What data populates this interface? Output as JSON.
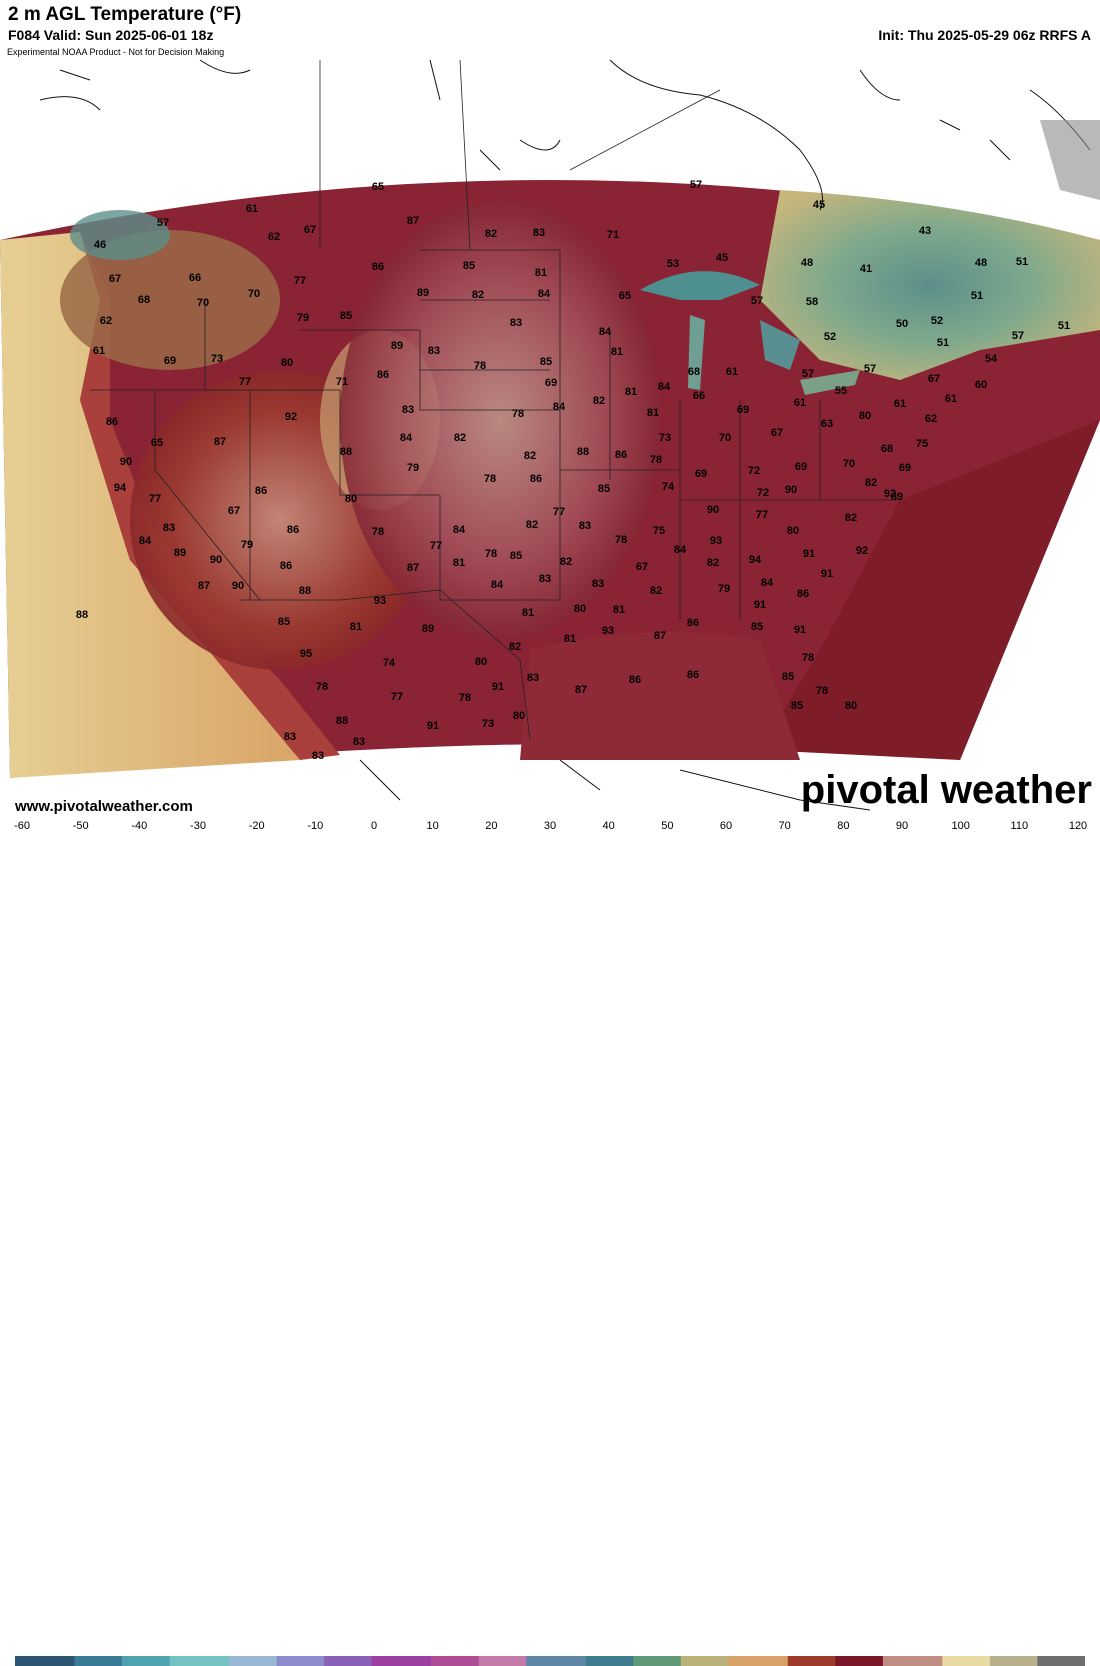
{
  "header": {
    "title": "2 m AGL Temperature (°F)",
    "valid": "F084 Valid: Sun 2025-06-01 18z",
    "init": "Init: Thu 2025-05-29 06z RRFS A",
    "disclaimer": "Experimental NOAA Product - Not for Decision Making"
  },
  "footer": {
    "url": "www.pivotalweather.com",
    "brand": "pivotal weather"
  },
  "colorbar": {
    "ticks": [
      "-60",
      "-50",
      "-40",
      "-30",
      "-20",
      "-10",
      "0",
      "10",
      "20",
      "30",
      "40",
      "50",
      "60",
      "70",
      "80",
      "90",
      "100",
      "110",
      "120"
    ],
    "range_f": [
      -60,
      120
    ],
    "colors": [
      "#2b5573",
      "#3a7b97",
      "#4fa3b1",
      "#74c3c3",
      "#9bb7d6",
      "#8c8ccc",
      "#8a5fb8",
      "#9b3fa0",
      "#b04d97",
      "#c47aa8",
      "#5e86a6",
      "#3f7c8d",
      "#5f9978",
      "#b9b27a",
      "#d7a168",
      "#9e3b2a",
      "#7a1628",
      "#c08d83",
      "#e8d9a5",
      "#b8b08a",
      "#6e6e6e"
    ]
  },
  "map": {
    "temperature_labels": [
      {
        "v": "65"
      },
      {
        "v": "57"
      },
      {
        "v": "61"
      },
      {
        "v": "87"
      },
      {
        "v": "57"
      },
      {
        "v": "45"
      },
      {
        "v": "43"
      },
      {
        "v": "62"
      },
      {
        "v": "67"
      },
      {
        "v": "82"
      },
      {
        "v": "83"
      },
      {
        "v": "71"
      },
      {
        "v": "46"
      },
      {
        "v": "86"
      },
      {
        "v": "85"
      },
      {
        "v": "66"
      },
      {
        "v": "77"
      },
      {
        "v": "81"
      },
      {
        "v": "53"
      },
      {
        "v": "45"
      },
      {
        "v": "48"
      },
      {
        "v": "41"
      },
      {
        "v": "48"
      },
      {
        "v": "51"
      },
      {
        "v": "67"
      },
      {
        "v": "68"
      },
      {
        "v": "70"
      },
      {
        "v": "70"
      },
      {
        "v": "89"
      },
      {
        "v": "82"
      },
      {
        "v": "84"
      },
      {
        "v": "65"
      },
      {
        "v": "57"
      },
      {
        "v": "58"
      },
      {
        "v": "51"
      },
      {
        "v": "62"
      },
      {
        "v": "79"
      },
      {
        "v": "85"
      },
      {
        "v": "83"
      },
      {
        "v": "50"
      },
      {
        "v": "52"
      },
      {
        "v": "57"
      },
      {
        "v": "51"
      },
      {
        "v": "61"
      },
      {
        "v": "73"
      },
      {
        "v": "80"
      },
      {
        "v": "89"
      },
      {
        "v": "83"
      },
      {
        "v": "85"
      },
      {
        "v": "81"
      },
      {
        "v": "84"
      },
      {
        "v": "52"
      },
      {
        "v": "51"
      },
      {
        "v": "54"
      },
      {
        "v": "69"
      },
      {
        "v": "78"
      },
      {
        "v": "77"
      },
      {
        "v": "71"
      },
      {
        "v": "86"
      },
      {
        "v": "69"
      },
      {
        "v": "68"
      },
      {
        "v": "61"
      },
      {
        "v": "57"
      },
      {
        "v": "57"
      },
      {
        "v": "67"
      },
      {
        "v": "84"
      },
      {
        "v": "78"
      },
      {
        "v": "66"
      },
      {
        "v": "69"
      },
      {
        "v": "61"
      },
      {
        "v": "55"
      },
      {
        "v": "61"
      },
      {
        "v": "61"
      },
      {
        "v": "60"
      },
      {
        "v": "86"
      },
      {
        "v": "92"
      },
      {
        "v": "83"
      },
      {
        "v": "81"
      },
      {
        "v": "84"
      },
      {
        "v": "82"
      },
      {
        "v": "81"
      },
      {
        "v": "80"
      },
      {
        "v": "62"
      },
      {
        "v": "65"
      },
      {
        "v": "87"
      },
      {
        "v": "84"
      },
      {
        "v": "82"
      },
      {
        "v": "82"
      },
      {
        "v": "73"
      },
      {
        "v": "70"
      },
      {
        "v": "67"
      },
      {
        "v": "63"
      },
      {
        "v": "75"
      },
      {
        "v": "90"
      },
      {
        "v": "88"
      },
      {
        "v": "79"
      },
      {
        "v": "78"
      },
      {
        "v": "86"
      },
      {
        "v": "88"
      },
      {
        "v": "86"
      },
      {
        "v": "78"
      },
      {
        "v": "69"
      },
      {
        "v": "72"
      },
      {
        "v": "69"
      },
      {
        "v": "70"
      },
      {
        "v": "68"
      },
      {
        "v": "69"
      },
      {
        "v": "94"
      },
      {
        "v": "86"
      },
      {
        "v": "80"
      },
      {
        "v": "85"
      },
      {
        "v": "74"
      },
      {
        "v": "72"
      },
      {
        "v": "90"
      },
      {
        "v": "92"
      },
      {
        "v": "82"
      },
      {
        "v": "77"
      },
      {
        "v": "67"
      },
      {
        "v": "90"
      },
      {
        "v": "77"
      },
      {
        "v": "89"
      },
      {
        "v": "83"
      },
      {
        "v": "86"
      },
      {
        "v": "84"
      },
      {
        "v": "82"
      },
      {
        "v": "77"
      },
      {
        "v": "83"
      },
      {
        "v": "78"
      },
      {
        "v": "75"
      },
      {
        "v": "80"
      },
      {
        "v": "82"
      },
      {
        "v": "84"
      },
      {
        "v": "89"
      },
      {
        "v": "79"
      },
      {
        "v": "78"
      },
      {
        "v": "77"
      },
      {
        "v": "85"
      },
      {
        "v": "84"
      },
      {
        "v": "93"
      },
      {
        "v": "94"
      },
      {
        "v": "91"
      },
      {
        "v": "92"
      },
      {
        "v": "90"
      },
      {
        "v": "86"
      },
      {
        "v": "87"
      },
      {
        "v": "81"
      },
      {
        "v": "78"
      },
      {
        "v": "82"
      },
      {
        "v": "83"
      },
      {
        "v": "67"
      },
      {
        "v": "91"
      },
      {
        "v": "90"
      },
      {
        "v": "87"
      },
      {
        "v": "88"
      },
      {
        "v": "93"
      },
      {
        "v": "89"
      },
      {
        "v": "88"
      },
      {
        "v": "82"
      },
      {
        "v": "79"
      },
      {
        "v": "84"
      },
      {
        "v": "82"
      },
      {
        "v": "91"
      },
      {
        "v": "85"
      },
      {
        "v": "81"
      },
      {
        "v": "84"
      },
      {
        "v": "83"
      },
      {
        "v": "81"
      },
      {
        "v": "80"
      },
      {
        "v": "81"
      },
      {
        "v": "86"
      },
      {
        "v": "86"
      },
      {
        "v": "85"
      },
      {
        "v": "91"
      },
      {
        "v": "93"
      },
      {
        "v": "81"
      },
      {
        "v": "82"
      },
      {
        "v": "87"
      },
      {
        "v": "95"
      },
      {
        "v": "74"
      },
      {
        "v": "80"
      },
      {
        "v": "91"
      },
      {
        "v": "83"
      },
      {
        "v": "78"
      },
      {
        "v": "77"
      },
      {
        "v": "78"
      },
      {
        "v": "88"
      },
      {
        "v": "83"
      },
      {
        "v": "91"
      },
      {
        "v": "73"
      },
      {
        "v": "80"
      },
      {
        "v": "87"
      },
      {
        "v": "86"
      },
      {
        "v": "86"
      },
      {
        "v": "78"
      },
      {
        "v": "85"
      },
      {
        "v": "85"
      },
      {
        "v": "78"
      },
      {
        "v": "80"
      },
      {
        "v": "83"
      },
      {
        "v": "83"
      }
    ]
  }
}
